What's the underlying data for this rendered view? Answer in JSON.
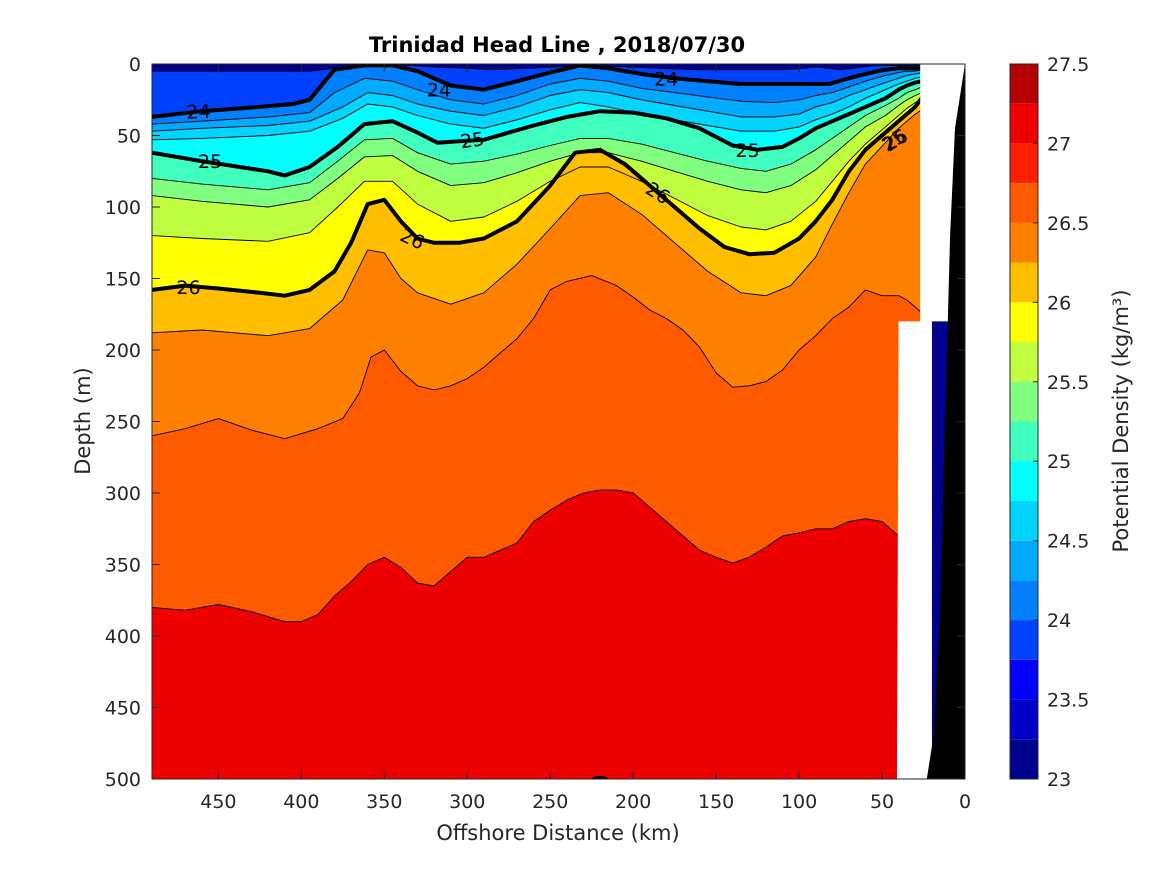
{
  "chart_data": {
    "type": "contourf",
    "title": "Trinidad Head Line , 2018/07/30",
    "xlabel": "Offshore Distance (km)",
    "ylabel": "Depth (m)",
    "colorbar_label": "Potential Density (kg/m³)",
    "xlim": [
      490,
      0
    ],
    "ylim": [
      0,
      500
    ],
    "y_reversed": true,
    "x_reversed": true,
    "xticks": [
      450,
      400,
      350,
      300,
      250,
      200,
      150,
      100,
      50,
      0
    ],
    "yticks": [
      0,
      50,
      100,
      150,
      200,
      250,
      300,
      350,
      400,
      450,
      500
    ],
    "colorbar": {
      "range": [
        23,
        27.5
      ],
      "ticks": [
        23,
        23.5,
        24,
        24.5,
        25,
        25.5,
        26,
        26.5,
        27,
        27.5
      ],
      "levels": [
        23,
        23.25,
        23.5,
        23.75,
        24,
        24.25,
        24.5,
        24.75,
        25,
        25.25,
        25.5,
        25.75,
        26,
        26.25,
        26.5,
        26.75,
        27,
        27.25,
        27.5
      ],
      "colors": [
        "#00008f",
        "#0000c8",
        "#0000ff",
        "#0040ff",
        "#0080ff",
        "#00aaff",
        "#00d4ff",
        "#00ffff",
        "#40ffbf",
        "#80ff80",
        "#bfff40",
        "#ffff00",
        "#ffbf00",
        "#ff8000",
        "#ff5a00",
        "#ff2000",
        "#ee0000",
        "#b40000"
      ]
    },
    "labeled_contours": [
      24,
      25,
      26
    ],
    "isopycnals": [
      {
        "level": 23.75,
        "x": [
          490,
          460,
          410,
          395,
          380,
          362,
          345,
          335,
          320,
          300,
          285,
          265,
          245,
          225,
          205,
          185,
          165,
          145,
          125,
          108,
          97,
          90,
          83,
          74,
          62,
          52,
          46,
          38,
          30,
          24,
          20
        ],
        "depth": [
          5,
          5,
          5,
          5,
          3,
          2,
          1,
          1,
          2,
          3,
          4,
          3,
          2,
          1,
          2,
          3,
          4,
          4,
          4,
          4,
          3,
          2,
          3,
          4,
          2,
          1,
          1,
          1,
          1,
          1,
          1
        ]
      },
      {
        "level": 24,
        "x": [
          490,
          460,
          425,
          405,
          395,
          380,
          362,
          345,
          330,
          310,
          290,
          270,
          250,
          232,
          215,
          195,
          175,
          155,
          135,
          115,
          100,
          90,
          82,
          70,
          60,
          48,
          40,
          35,
          30,
          26,
          20
        ],
        "depth": [
          37,
          33,
          30,
          28,
          25,
          4,
          1,
          1,
          5,
          15,
          18,
          12,
          6,
          1,
          3,
          7,
          10,
          12,
          14,
          14,
          14,
          14,
          14,
          10,
          7,
          4,
          3,
          3,
          3,
          3,
          2
        ]
      },
      {
        "level": 24.25,
        "x": [
          490,
          460,
          420,
          395,
          380,
          362,
          345,
          330,
          310,
          290,
          270,
          250,
          232,
          215,
          195,
          175,
          155,
          135,
          115,
          100,
          90,
          80,
          70,
          60,
          48,
          40,
          35,
          30,
          26,
          20
        ],
        "depth": [
          42,
          40,
          37,
          34,
          20,
          10,
          12,
          18,
          25,
          28,
          22,
          14,
          10,
          12,
          17,
          20,
          23,
          26,
          27,
          25,
          22,
          20,
          16,
          12,
          8,
          6,
          5,
          5,
          4,
          4
        ]
      },
      {
        "level": 24.5,
        "x": [
          490,
          460,
          420,
          395,
          375,
          360,
          345,
          330,
          310,
          290,
          270,
          250,
          232,
          215,
          195,
          175,
          155,
          135,
          115,
          100,
          90,
          80,
          70,
          60,
          48,
          40,
          35,
          30,
          26,
          20
        ],
        "depth": [
          47,
          45,
          43,
          40,
          30,
          20,
          22,
          28,
          33,
          36,
          30,
          22,
          18,
          20,
          25,
          29,
          33,
          37,
          37,
          35,
          30,
          27,
          22,
          18,
          13,
          10,
          8,
          7,
          6,
          5
        ]
      },
      {
        "level": 24.75,
        "x": [
          490,
          460,
          420,
          395,
          375,
          360,
          345,
          330,
          310,
          290,
          270,
          250,
          232,
          215,
          195,
          175,
          155,
          135,
          115,
          100,
          90,
          80,
          70,
          60,
          48,
          40,
          35,
          30,
          26,
          20
        ],
        "depth": [
          53,
          52,
          50,
          47,
          38,
          28,
          30,
          36,
          42,
          45,
          39,
          32,
          27,
          30,
          35,
          39,
          43,
          47,
          47,
          44,
          39,
          35,
          30,
          24,
          18,
          14,
          12,
          10,
          9,
          8
        ]
      },
      {
        "level": 25,
        "x": [
          490,
          460,
          420,
          410,
          395,
          378,
          362,
          345,
          330,
          318,
          305,
          290,
          275,
          260,
          240,
          220,
          200,
          180,
          160,
          140,
          125,
          110,
          100,
          90,
          80,
          70,
          60,
          48,
          40,
          35,
          30,
          26,
          20
        ],
        "depth": [
          62,
          68,
          75,
          78,
          72,
          58,
          42,
          40,
          48,
          55,
          54,
          53,
          48,
          43,
          37,
          33,
          34,
          38,
          45,
          57,
          60,
          58,
          52,
          45,
          40,
          35,
          30,
          24,
          18,
          15,
          13,
          12,
          11
        ]
      },
      {
        "level": 25.25,
        "x": [
          490,
          460,
          420,
          395,
          378,
          362,
          345,
          330,
          310,
          290,
          270,
          250,
          232,
          215,
          195,
          175,
          155,
          135,
          120,
          105,
          90,
          80,
          70,
          60,
          48,
          40,
          35,
          30,
          26,
          20
        ],
        "depth": [
          80,
          84,
          88,
          83,
          68,
          53,
          52,
          62,
          70,
          68,
          63,
          57,
          52,
          52,
          56,
          62,
          68,
          73,
          75,
          70,
          60,
          52,
          44,
          36,
          29,
          24,
          20,
          18,
          16,
          14
        ]
      },
      {
        "level": 25.5,
        "x": [
          490,
          460,
          420,
          395,
          378,
          362,
          345,
          330,
          310,
          290,
          270,
          250,
          232,
          215,
          195,
          175,
          155,
          135,
          120,
          105,
          90,
          80,
          70,
          60,
          48,
          40,
          35,
          30,
          26,
          20
        ],
        "depth": [
          92,
          96,
          100,
          95,
          80,
          65,
          64,
          75,
          85,
          83,
          76,
          68,
          62,
          62,
          68,
          75,
          82,
          88,
          90,
          85,
          74,
          64,
          54,
          44,
          36,
          29,
          25,
          22,
          20,
          18
        ]
      },
      {
        "level": 25.75,
        "x": [
          490,
          460,
          420,
          395,
          378,
          362,
          345,
          330,
          310,
          290,
          270,
          250,
          232,
          215,
          195,
          175,
          155,
          135,
          120,
          105,
          90,
          80,
          70,
          60,
          48,
          40,
          35,
          30,
          26,
          20
        ],
        "depth": [
          120,
          122,
          124,
          118,
          100,
          82,
          82,
          98,
          110,
          107,
          96,
          82,
          72,
          72,
          82,
          94,
          106,
          114,
          116,
          110,
          96,
          82,
          68,
          56,
          44,
          36,
          31,
          27,
          24,
          22
        ]
      },
      {
        "level": 26,
        "x": [
          490,
          470,
          450,
          425,
          410,
          395,
          380,
          370,
          360,
          350,
          340,
          330,
          320,
          305,
          290,
          270,
          250,
          235,
          220,
          205,
          190,
          175,
          160,
          145,
          130,
          115,
          100,
          90,
          80,
          70,
          60,
          45,
          30,
          25,
          20
        ],
        "depth": [
          158,
          155,
          157,
          160,
          162,
          158,
          145,
          125,
          98,
          95,
          110,
          122,
          125,
          125,
          122,
          110,
          85,
          62,
          60,
          70,
          85,
          100,
          115,
          128,
          133,
          132,
          122,
          110,
          95,
          75,
          60,
          45,
          30,
          22,
          15
        ]
      },
      {
        "level": 26.25,
        "x": [
          490,
          460,
          420,
          395,
          375,
          360,
          350,
          340,
          330,
          310,
          290,
          270,
          250,
          232,
          215,
          195,
          175,
          155,
          135,
          120,
          105,
          90,
          80,
          70,
          60,
          48,
          40,
          35,
          30,
          26,
          20
        ],
        "depth": [
          188,
          186,
          190,
          185,
          165,
          130,
          132,
          150,
          160,
          168,
          160,
          140,
          115,
          92,
          90,
          105,
          125,
          145,
          160,
          162,
          155,
          135,
          112,
          90,
          70,
          55,
          45,
          40,
          35,
          32,
          30
        ]
      },
      {
        "level": 26.5,
        "x": [
          490,
          470,
          450,
          430,
          410,
          390,
          375,
          365,
          358,
          350,
          340,
          330,
          320,
          310,
          300,
          290,
          280,
          270,
          260,
          250,
          240,
          225,
          210,
          200,
          190,
          180,
          170,
          160,
          150,
          140,
          130,
          120,
          110,
          100,
          90,
          80,
          70,
          60,
          50,
          40,
          35,
          30,
          25,
          22
        ],
        "depth": [
          260,
          255,
          248,
          256,
          262,
          255,
          248,
          230,
          205,
          200,
          215,
          225,
          228,
          225,
          220,
          212,
          202,
          192,
          178,
          158,
          152,
          148,
          155,
          163,
          172,
          178,
          186,
          198,
          216,
          226,
          225,
          222,
          214,
          200,
          190,
          178,
          170,
          158,
          162,
          162,
          165,
          170,
          175,
          180
        ]
      },
      {
        "level": 27,
        "x": [
          490,
          470,
          450,
          430,
          410,
          400,
          390,
          380,
          370,
          360,
          350,
          340,
          330,
          320,
          310,
          300,
          290,
          280,
          270,
          260,
          250,
          240,
          230,
          220,
          210,
          200,
          190,
          180,
          170,
          160,
          150,
          140,
          130,
          120,
          110,
          100,
          90,
          80,
          70,
          60,
          50,
          40,
          35,
          30
        ],
        "depth": [
          380,
          382,
          378,
          383,
          390,
          390,
          385,
          372,
          362,
          350,
          345,
          352,
          363,
          365,
          355,
          345,
          345,
          340,
          335,
          320,
          312,
          305,
          300,
          298,
          298,
          300,
          310,
          320,
          330,
          340,
          345,
          349,
          345,
          338,
          330,
          328,
          325,
          325,
          320,
          318,
          320,
          330,
          340,
          345
        ]
      }
    ],
    "contour_labels": [
      {
        "text": "24",
        "x": 462,
        "depth": 33,
        "angle": -3
      },
      {
        "text": "24",
        "x": 317,
        "depth": 18,
        "angle": 0
      },
      {
        "text": "24",
        "x": 180,
        "depth": 10,
        "angle": 0
      },
      {
        "text": "25",
        "x": 455,
        "depth": 68,
        "angle": 0
      },
      {
        "text": "25",
        "x": 297,
        "depth": 53,
        "angle": -8
      },
      {
        "text": "25",
        "x": 131,
        "depth": 60,
        "angle": 0
      },
      {
        "text": "25",
        "x": 43,
        "depth": 53,
        "angle": -32
      },
      {
        "text": "26",
        "x": 468,
        "depth": 156,
        "angle": 0
      },
      {
        "text": "26",
        "x": 333,
        "depth": 122,
        "angle": 25
      },
      {
        "text": "26",
        "x": 185,
        "depth": 90,
        "angle": 32
      },
      {
        "text": "26",
        "x": 42,
        "depth": 53,
        "angle": -32
      }
    ],
    "bottom_bathymetry": {
      "x": [
        23,
        19,
        15,
        12,
        9,
        6,
        0
      ],
      "depth": [
        500,
        470,
        380,
        250,
        120,
        45,
        0
      ]
    },
    "data_gap": {
      "x": [
        27,
        20,
        20,
        40,
        41,
        27
      ],
      "depth": [
        500,
        500,
        180,
        180,
        500,
        500
      ]
    }
  }
}
